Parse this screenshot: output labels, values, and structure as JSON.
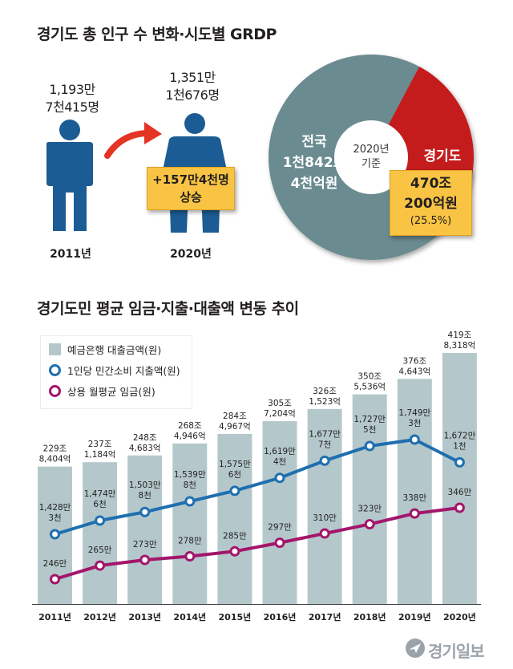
{
  "top_section": {
    "title": "경기도 총 인구 수 변화·시도별 GRDP",
    "pop_2011": {
      "line1": "1,193만",
      "line2": "7천415명",
      "year": "2011년"
    },
    "pop_2020": {
      "line1": "1,351만",
      "line2": "1천676명",
      "year": "2020년"
    },
    "increase": {
      "line1": "+157만4천명",
      "line2": "상승"
    }
  },
  "grdp_pie": {
    "center_line1": "2020년",
    "center_line2": "기준",
    "national": {
      "line1": "전국",
      "line2": "1천842조",
      "line3": "4천억원"
    },
    "gyeonggi": {
      "label": "경기도",
      "line1": "470조",
      "line2": "200억원",
      "pct": "(25.5%)",
      "share": 0.255
    },
    "colors": {
      "national": "#6b8b8f",
      "gyeonggi": "#c41f1f",
      "box": "#f9c443"
    }
  },
  "bottom_section": {
    "title": "경기도민 평균 임금·지출·대출액 변동 추이"
  },
  "chart_data": {
    "type": "bar",
    "categories": [
      "2011년",
      "2012년",
      "2013년",
      "2014년",
      "2015년",
      "2016년",
      "2017년",
      "2018년",
      "2019년",
      "2020년"
    ],
    "series": [
      {
        "name": "예금은행 대출금액(원)",
        "type": "bar",
        "color": "#b4c8cb",
        "values": [
          2298404,
          2371184,
          2484683,
          2684946,
          2844967,
          3057204,
          3261523,
          3505536,
          3764643,
          4198318
        ],
        "labels": [
          [
            "229조",
            "8,404억"
          ],
          [
            "237조",
            "1,184억"
          ],
          [
            "248조",
            "4,683억"
          ],
          [
            "268조",
            "4,946억"
          ],
          [
            "284조",
            "4,967억"
          ],
          [
            "305조",
            "7,204억"
          ],
          [
            "326조",
            "1,523억"
          ],
          [
            "350조",
            "5,536억"
          ],
          [
            "376조",
            "4,643억"
          ],
          [
            "419조",
            "8,318억"
          ]
        ]
      },
      {
        "name": "1인당 민간소비 지출액(원)",
        "type": "line",
        "color": "#1f6fb0",
        "values": [
          14283,
          14746,
          15038,
          15398,
          15756,
          16194,
          16777,
          17275,
          17493,
          16721
        ],
        "labels": [
          [
            "1,428만",
            "3천"
          ],
          [
            "1,474만",
            "6천"
          ],
          [
            "1,503만",
            "8천"
          ],
          [
            "1,539만",
            "8천"
          ],
          [
            "1,575만",
            "6천"
          ],
          [
            "1,619만",
            "4천"
          ],
          [
            "1,677만",
            "7천"
          ],
          [
            "1,727만",
            "5천"
          ],
          [
            "1,749만",
            "3천"
          ],
          [
            "1,672만",
            "1천"
          ]
        ]
      },
      {
        "name": "상용 월평균 임금(원)",
        "type": "line",
        "color": "#a3166b",
        "values": [
          246,
          265,
          273,
          278,
          285,
          297,
          310,
          323,
          338,
          346
        ],
        "labels": [
          [
            "246만"
          ],
          [
            "265만"
          ],
          [
            "273만"
          ],
          [
            "278만"
          ],
          [
            "285만"
          ],
          [
            "297만"
          ],
          [
            "310만"
          ],
          [
            "323만"
          ],
          [
            "338만"
          ],
          [
            "346만"
          ]
        ]
      }
    ]
  },
  "logo": {
    "text": "경기일보"
  }
}
